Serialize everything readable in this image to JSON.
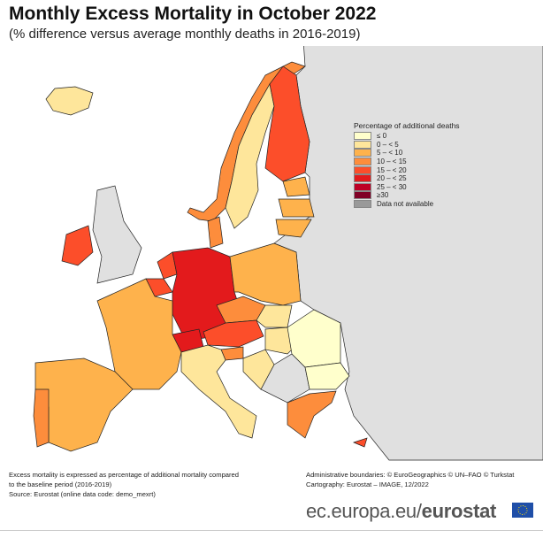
{
  "title": "Monthly Excess Mortality in October 2022",
  "subtitle": "(% difference versus average monthly deaths in 2016-2019)",
  "legend": {
    "title": "Percentage of additional deaths",
    "items": [
      {
        "label": "≤ 0",
        "color": "#ffffcc"
      },
      {
        "label": "0 – < 5",
        "color": "#fee69b"
      },
      {
        "label": "5 – < 10",
        "color": "#feb24c"
      },
      {
        "label": "10 – < 15",
        "color": "#fd8d3c"
      },
      {
        "label": "15 – < 20",
        "color": "#fc4e2a"
      },
      {
        "label": "20 – < 25",
        "color": "#e31a1c"
      },
      {
        "label": "25 – < 30",
        "color": "#bd0026"
      },
      {
        "label": "≥30",
        "color": "#800026"
      },
      {
        "label": "Data not available",
        "color": "#999999"
      }
    ]
  },
  "map_colors": {
    "sea": "#ffffff",
    "non_eu_land": "#e0e0e0"
  },
  "countries": {
    "IS": 1,
    "NO": 3,
    "SE": 1,
    "FI": 4,
    "EE": 2,
    "LV": 2,
    "LT": 2,
    "DK": 3,
    "IE": 4,
    "NL": 4,
    "BE": 4,
    "DE": 5,
    "PL": 2,
    "CZ": 3,
    "SK": 1,
    "AT": 4,
    "CH": 5,
    "HU": 1,
    "SI": 3,
    "HR": 1,
    "RO": 0,
    "BG": 0,
    "FR": 2,
    "ES": 2,
    "PT": 3,
    "IT": 1,
    "GR": 3,
    "CY": 4
  },
  "footer": {
    "note1": "Excess mortality is expressed as percentage of additional mortality compared",
    "note2": "to the baseline period (2016-2019)",
    "source": "Source: Eurostat (online data code: demo_mexrt)",
    "boundaries": "Administrative boundaries: © EuroGeographics © UN–FAO © Turkstat",
    "cartography": "Cartography: Eurostat – IMAGE, 12/2022",
    "brand_prefix": "ec.europa.eu/",
    "brand_name": "eurostat"
  }
}
